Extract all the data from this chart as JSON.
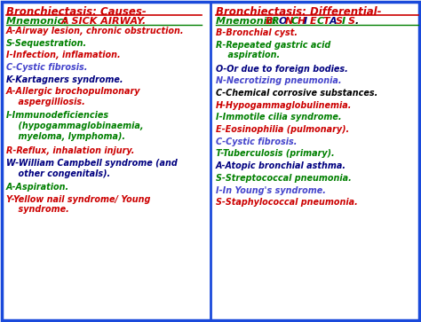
{
  "bg_color": "#ffffff",
  "border_color": "#1a4adb",
  "divider_color": "#1a4adb",
  "left_title": "Bronchiectasis: Causes-",
  "left_mnemonic_prefix": "Mnemonic:  ",
  "left_mnemonic_main": "A SICK AIRWAY.",
  "left_items": [
    {
      "text": "A-Airway lesion, chronic obstruction.",
      "color": "#cc0000"
    },
    {
      "text": "S-Sequestration.",
      "color": "#008000"
    },
    {
      "text": "I-Infection, inflamation.",
      "color": "#cc0000"
    },
    {
      "text": "C-Cystic fibrosis.",
      "color": "#4444cc"
    },
    {
      "text": "K-Kartagners syndrome.",
      "color": "#000080"
    },
    {
      "text": "A-Allergic brochopulmonary\n    aspergilliosis.",
      "color": "#cc0000"
    },
    {
      "text": "I-Immunodeficiencies\n    (hypogammaglobinaemia,\n    myeloma, lymphoma).",
      "color": "#008000"
    },
    {
      "text": "R-Reflux, inhalation injury.",
      "color": "#cc0000"
    },
    {
      "text": "W-William Campbell syndrome (and\n    other congenitals).",
      "color": "#000080"
    },
    {
      "text": "A-Aspiration.",
      "color": "#008000"
    },
    {
      "text": "Y-Yellow nail syndrome/ Young\n    syndrome.",
      "color": "#cc0000"
    }
  ],
  "right_title": "Bronchiectasis: Differential-",
  "right_mnemonic_prefix": "Mnemonic: ",
  "right_mnemonic_letters": [
    {
      "letter": "B",
      "color": "#cc0000"
    },
    {
      "letter": "R",
      "color": "#008000"
    },
    {
      "letter": "O",
      "color": "#000080"
    },
    {
      "letter": "N",
      "color": "#cc0000"
    },
    {
      "letter": "C",
      "color": "#008000"
    },
    {
      "letter": "H",
      "color": "#cc0000"
    },
    {
      "letter": "I",
      "color": "#000080"
    },
    {
      "letter": "E",
      "color": "#cc0000"
    },
    {
      "letter": "C",
      "color": "#008000"
    },
    {
      "letter": "T",
      "color": "#cc0000"
    },
    {
      "letter": "A",
      "color": "#000080"
    },
    {
      "letter": "S",
      "color": "#cc0000"
    },
    {
      "letter": "I",
      "color": "#008000"
    },
    {
      "letter": "S",
      "color": "#cc0000"
    },
    {
      "letter": ".",
      "color": "#000000"
    }
  ],
  "right_items": [
    {
      "text": "B-Bronchial cyst.",
      "color": "#cc0000"
    },
    {
      "text": "R-Repeated gastric acid\n    aspiration.",
      "color": "#008000"
    },
    {
      "text": "O-Or due to foreign bodies.",
      "color": "#000080"
    },
    {
      "text": "N-Necrotizing pneumonia.",
      "color": "#4444cc"
    },
    {
      "text": "C-Chemical corrosive substances.",
      "color": "#000000"
    },
    {
      "text": "H-Hypogammaglobulinemia.",
      "color": "#cc0000"
    },
    {
      "text": "I-Immotile cilia syndrome.",
      "color": "#008000"
    },
    {
      "text": "E-Eosinophilia (pulmonary).",
      "color": "#cc0000"
    },
    {
      "text": "C-Cystic fibrosis.",
      "color": "#4444cc"
    },
    {
      "text": "T-Tuberculosis (primary).",
      "color": "#008000"
    },
    {
      "text": "A-Atopic bronchial asthma.",
      "color": "#000080"
    },
    {
      "text": "S-Streptococcal pneumonia.",
      "color": "#008000"
    },
    {
      "text": "I-In Young's syndrome.",
      "color": "#4444cc"
    },
    {
      "text": "S-Staphylococcal pneumonia.",
      "color": "#cc0000"
    }
  ]
}
